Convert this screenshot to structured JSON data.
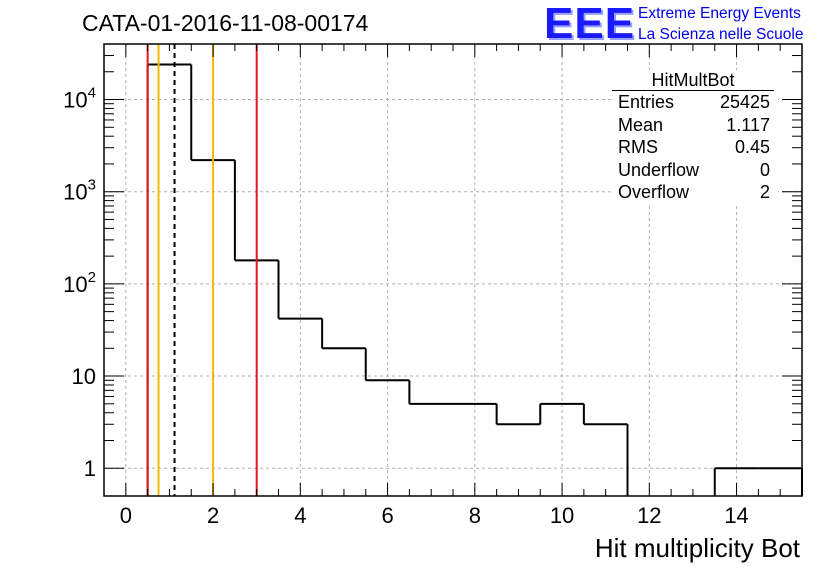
{
  "title": "CATA-01-2016-11-08-00174",
  "logo": {
    "mark": "EEE",
    "line1": "Extreme Energy Events",
    "line2": "La Scienza nelle Scuole"
  },
  "stats_box": {
    "title": "HitMultBot",
    "rows": [
      {
        "label": "Entries",
        "value": "25425"
      },
      {
        "label": "Mean",
        "value": "1.117"
      },
      {
        "label": "RMS",
        "value": "0.45"
      },
      {
        "label": "Underflow",
        "value": "0"
      },
      {
        "label": "Overflow",
        "value": "2"
      }
    ]
  },
  "chart_data": {
    "type": "histogram",
    "title": "CATA-01-2016-11-08-00174",
    "xlabel": "Hit multiplicity Bot",
    "ylabel": "",
    "xlim": [
      -0.5,
      15.5
    ],
    "ylim": [
      0.5,
      40000
    ],
    "log_y": true,
    "grid": true,
    "bin_width": 1,
    "bins": [
      {
        "low": 0.5,
        "high": 1.5,
        "count": 24000
      },
      {
        "low": 1.5,
        "high": 2.5,
        "count": 2200
      },
      {
        "low": 2.5,
        "high": 3.5,
        "count": 180
      },
      {
        "low": 3.5,
        "high": 4.5,
        "count": 42
      },
      {
        "low": 4.5,
        "high": 5.5,
        "count": 20
      },
      {
        "low": 5.5,
        "high": 6.5,
        "count": 9
      },
      {
        "low": 6.5,
        "high": 7.5,
        "count": 5
      },
      {
        "low": 7.5,
        "high": 8.5,
        "count": 5
      },
      {
        "low": 8.5,
        "high": 9.5,
        "count": 3
      },
      {
        "low": 9.5,
        "high": 10.5,
        "count": 5
      },
      {
        "low": 10.5,
        "high": 11.5,
        "count": 3
      },
      {
        "low": 11.5,
        "high": 12.5,
        "count": 0
      },
      {
        "low": 12.5,
        "high": 13.5,
        "count": 0
      },
      {
        "low": 13.5,
        "high": 14.5,
        "count": 1
      },
      {
        "low": 14.5,
        "high": 15.5,
        "count": 1
      }
    ],
    "x_ticks": [
      {
        "value": 0,
        "label": "0"
      },
      {
        "value": 2,
        "label": "2"
      },
      {
        "value": 4,
        "label": "4"
      },
      {
        "value": 6,
        "label": "6"
      },
      {
        "value": 8,
        "label": "8"
      },
      {
        "value": 10,
        "label": "10"
      },
      {
        "value": 12,
        "label": "12"
      },
      {
        "value": 14,
        "label": "14"
      }
    ],
    "y_ticks": [
      {
        "value": 1,
        "base": "1",
        "exp": ""
      },
      {
        "value": 10,
        "base": "10",
        "exp": ""
      },
      {
        "value": 100,
        "base": "10",
        "exp": "2"
      },
      {
        "value": 1000,
        "base": "10",
        "exp": "3"
      },
      {
        "value": 10000,
        "base": "10",
        "exp": "4"
      }
    ],
    "markers": [
      {
        "x": 0.5,
        "color": "#e8141b",
        "style": "solid"
      },
      {
        "x": 0.75,
        "color": "#f5b800",
        "style": "solid"
      },
      {
        "x": 1.117,
        "color": "#000000",
        "style": "dashed"
      },
      {
        "x": 2.0,
        "color": "#f5b800",
        "style": "solid"
      },
      {
        "x": 3.0,
        "color": "#e8141b",
        "style": "solid"
      }
    ],
    "colors": {
      "line": "#000000",
      "grid": "#b0b0b0",
      "red": "#e8141b",
      "yellow": "#f5b800"
    }
  }
}
